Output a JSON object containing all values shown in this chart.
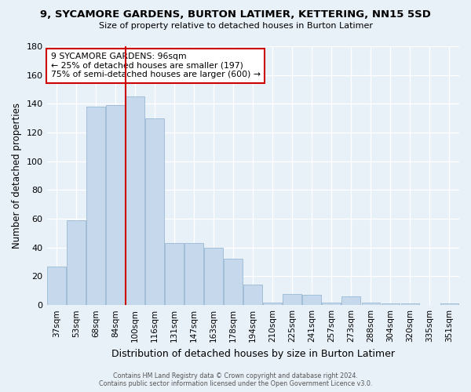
{
  "title": "9, SYCAMORE GARDENS, BURTON LATIMER, KETTERING, NN15 5SD",
  "subtitle": "Size of property relative to detached houses in Burton Latimer",
  "xlabel": "Distribution of detached houses by size in Burton Latimer",
  "ylabel": "Number of detached properties",
  "bar_color": "#c6d9ec",
  "bar_edge_color": "#9ab8d4",
  "background_color": "#e8f0f8",
  "grid_color": "#ffffff",
  "red_line_x": 96,
  "annotation_text": "9 SYCAMORE GARDENS: 96sqm\n← 25% of detached houses are smaller (197)\n75% of semi-detached houses are larger (600) →",
  "annotation_box_color": "#ffffff",
  "annotation_box_edge": "#cc0000",
  "categories": [
    "37sqm",
    "53sqm",
    "68sqm",
    "84sqm",
    "100sqm",
    "116sqm",
    "131sqm",
    "147sqm",
    "163sqm",
    "178sqm",
    "194sqm",
    "210sqm",
    "225sqm",
    "241sqm",
    "257sqm",
    "273sqm",
    "288sqm",
    "304sqm",
    "320sqm",
    "335sqm",
    "351sqm"
  ],
  "values": [
    27,
    59,
    138,
    139,
    145,
    130,
    43,
    43,
    40,
    32,
    14,
    2,
    8,
    7,
    2,
    6,
    2,
    1,
    1,
    0,
    1
  ],
  "ylim": [
    0,
    180
  ],
  "yticks": [
    0,
    20,
    40,
    60,
    80,
    100,
    120,
    140,
    160,
    180
  ],
  "footer_line1": "Contains HM Land Registry data © Crown copyright and database right 2024.",
  "footer_line2": "Contains public sector information licensed under the Open Government Licence v3.0."
}
